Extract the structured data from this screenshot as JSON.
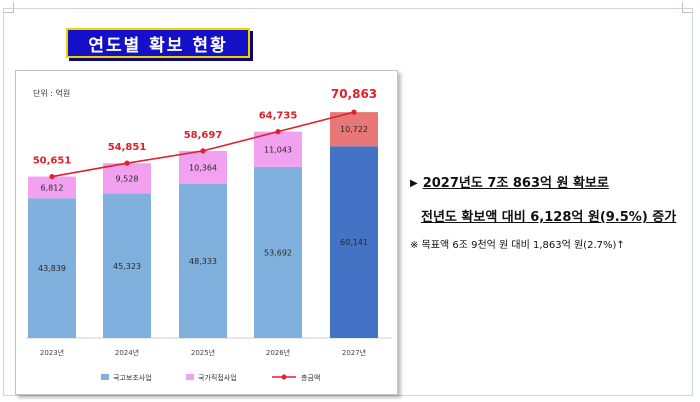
{
  "title": "연도별 확보 현황",
  "summary": {
    "line1": "2027년도 7조 863억 원 확보로",
    "line2": "전년도 확보액 대비 6,128억 원(9.5%) 증가",
    "note": "※ 목표액 6조 9천억 원 대비 1,863억 원(2.7%)↑"
  },
  "colors": {
    "title_bg": "#1410c8",
    "title_border": "#f2d000",
    "national": "#7fb0de",
    "national_2027": "#4472c4",
    "direct": "#f2a1f0",
    "direct_2027": "#e87878",
    "total_line": "#e0202a",
    "total_label": "#e0202a"
  },
  "chart_data": {
    "type": "bar",
    "stacked": true,
    "unit_label": "단위 : 억원",
    "categories": [
      "2023년",
      "2024년",
      "2025년",
      "2026년",
      "2027년"
    ],
    "series": [
      {
        "name": "국고보조사업",
        "values": [
          43839,
          45323,
          48333,
          53692,
          60141
        ],
        "labels": [
          "43,839",
          "45,323",
          "48,333",
          "53,692",
          "60,141"
        ]
      },
      {
        "name": "국가직접사업",
        "values": [
          6812,
          9528,
          10364,
          11043,
          10722
        ],
        "labels": [
          "6,812",
          "9,528",
          "10,364",
          "11,043",
          "10,722"
        ]
      }
    ],
    "total": {
      "name": "총금액",
      "type": "line",
      "values": [
        50651,
        54851,
        58697,
        64735,
        70863
      ],
      "labels": [
        "50,651",
        "54,851",
        "58,697",
        "64,735",
        "70,863"
      ]
    },
    "ylim": [
      0,
      80000
    ],
    "legend_position": "bottom"
  }
}
